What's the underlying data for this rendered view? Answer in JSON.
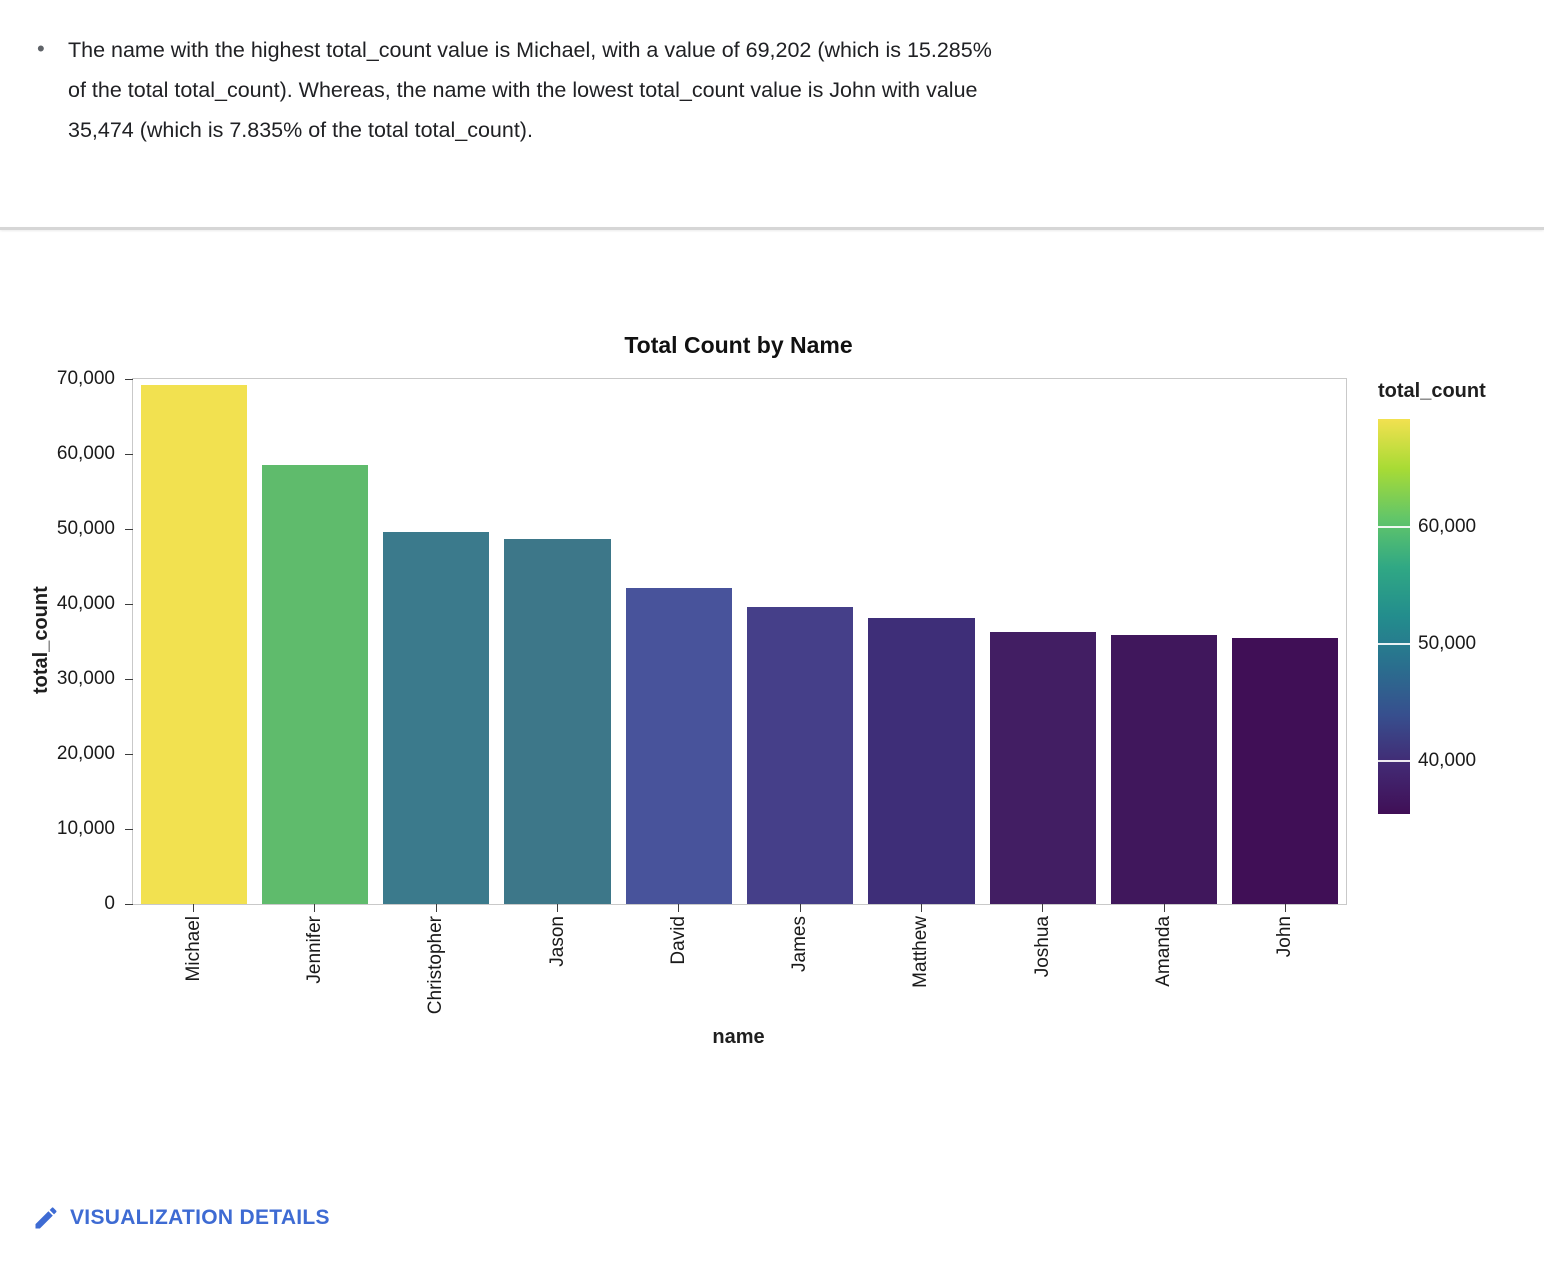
{
  "insight": {
    "text": "The name with the highest total_count value is Michael, with a value of 69,202 (which is 15.285% of the total total_count). Whereas, the name with the lowest total_count value is John with value 35,474 (which is 7.835% of the total total_count)."
  },
  "chart_data": {
    "type": "bar",
    "title": "Total Count by Name",
    "xlabel": "name",
    "ylabel": "total_count",
    "categories": [
      "Michael",
      "Jennifer",
      "Christopher",
      "Jason",
      "David",
      "James",
      "Matthew",
      "Joshua",
      "Amanda",
      "John"
    ],
    "values": [
      69202,
      58550,
      49600,
      48700,
      42100,
      39650,
      38100,
      36300,
      35900,
      35474
    ],
    "bar_colors": [
      "#F2E150",
      "#5FBB6C",
      "#3B7A8C",
      "#3D7789",
      "#48539B",
      "#453F89",
      "#3E2E78",
      "#421E63",
      "#40175C",
      "#400F56"
    ],
    "ylim": [
      0,
      70000
    ],
    "yticks": [
      0,
      10000,
      20000,
      30000,
      40000,
      50000,
      60000,
      70000
    ],
    "grid": false,
    "legend": {
      "title": "total_count",
      "position": "right",
      "ticks": [
        60000,
        50000,
        40000
      ],
      "min": 35474,
      "max": 69202,
      "colorscale": [
        "#F2E150",
        "#A8DB35",
        "#63C668",
        "#30A884",
        "#238D8D",
        "#2A6F8E",
        "#374F8E",
        "#422A74",
        "#400F56"
      ]
    }
  },
  "footer": {
    "link_label": "VISUALIZATION DETAILS",
    "accent_color": "#3E6BD3"
  }
}
